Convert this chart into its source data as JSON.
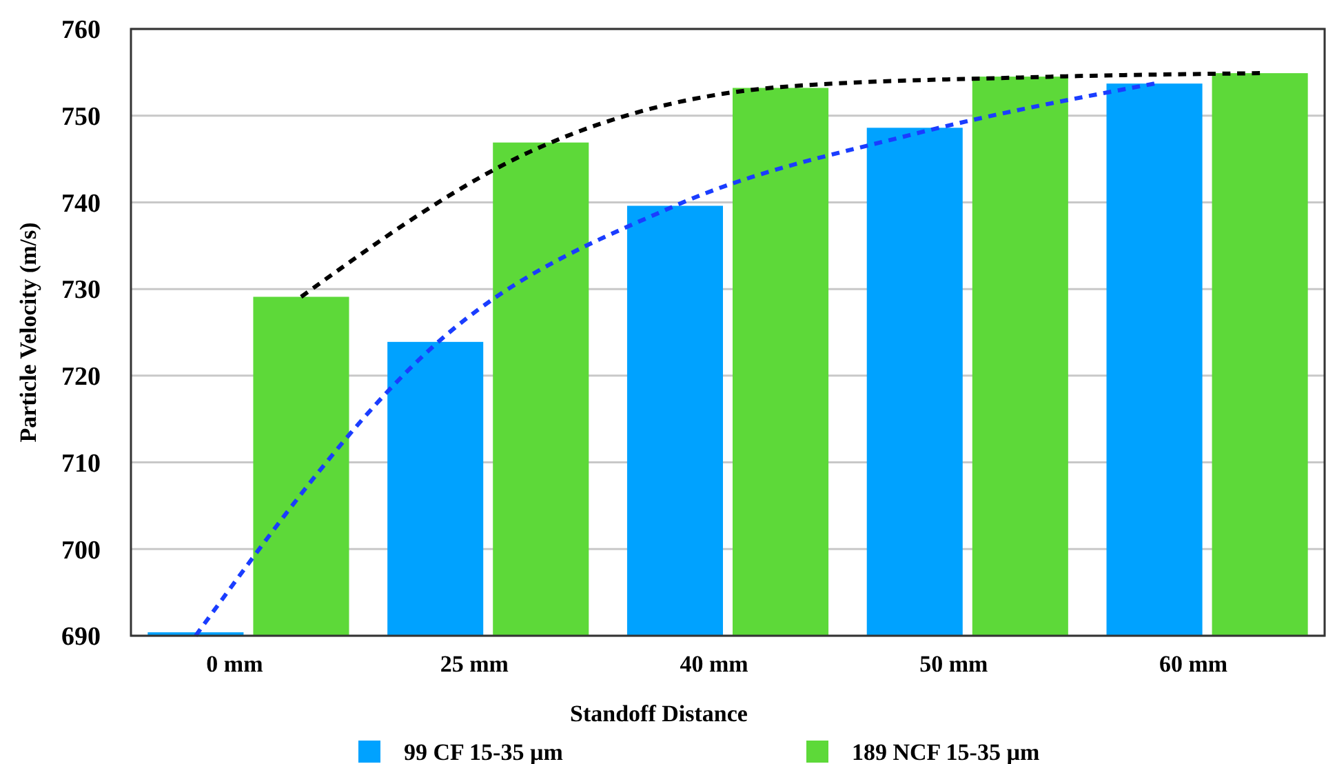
{
  "chart_data": {
    "type": "bar",
    "xlabel": "Standoff Distance",
    "ylabel": "Particle Velocity (m/s)",
    "categories": [
      "0 mm",
      "25 mm",
      "40 mm",
      "50 mm",
      "60 mm"
    ],
    "series": [
      {
        "name": "99 CF  15-35 µm",
        "color": "#00a2ff",
        "values": [
          690.4,
          723.9,
          739.6,
          748.6,
          753.7
        ]
      },
      {
        "name": "189 NCF  15-35 µm",
        "color": "#5dd939",
        "values": [
          729.1,
          746.9,
          753.2,
          754.5,
          754.9
        ]
      },
      {
        "type": "line",
        "color": "#1a3dff",
        "line_style": "dashed",
        "values": [
          690,
          723.6,
          739.6,
          747.9,
          753.7
        ]
      },
      {
        "type": "line",
        "color": "#000000",
        "line_style": "dashed",
        "values": [
          729.1,
          746.4,
          753.3,
          754.4,
          754.9
        ]
      }
    ],
    "ylim": [
      690,
      760
    ],
    "yticks": [
      690,
      700,
      710,
      720,
      730,
      740,
      750,
      760
    ],
    "grid": "y",
    "legend": "bottom"
  }
}
